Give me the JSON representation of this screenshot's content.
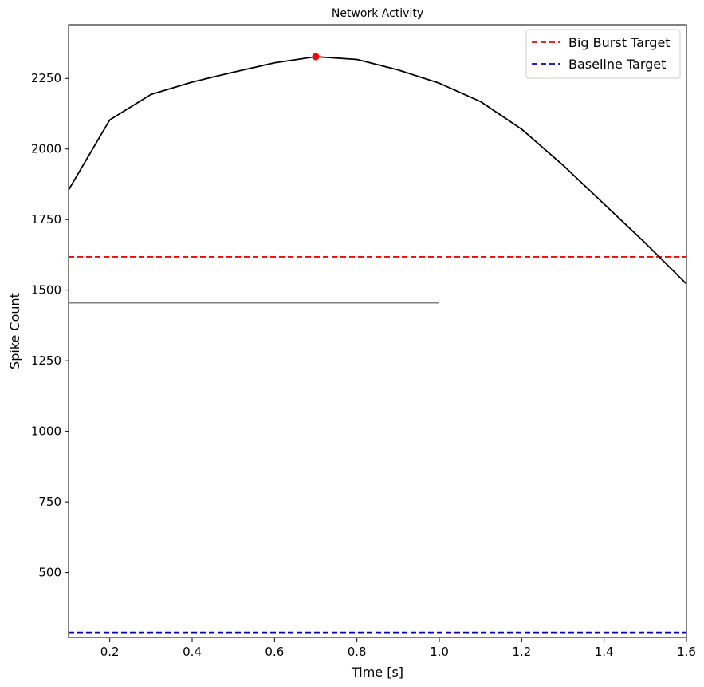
{
  "chart_data": {
    "type": "line",
    "title": "Network Activity",
    "xlabel": "Time [s]",
    "ylabel": "Spike Count",
    "xlim": [
      0.1,
      1.6
    ],
    "ylim": [
      270,
      2440
    ],
    "xticks": [
      0.2,
      0.4,
      0.6,
      0.8,
      1.0,
      1.2,
      1.4,
      1.6
    ],
    "xtick_labels": [
      "0.2",
      "0.4",
      "0.6",
      "0.8",
      "1.0",
      "1.2",
      "1.4",
      "1.6"
    ],
    "yticks": [
      500,
      750,
      1000,
      1250,
      1500,
      1750,
      2000,
      2250
    ],
    "ytick_labels": [
      "500",
      "750",
      "1000",
      "1250",
      "1500",
      "1750",
      "2000",
      "2250"
    ],
    "series": [
      {
        "name": "activity",
        "color": "#000000",
        "x": [
          0.1,
          0.2,
          0.3,
          0.4,
          0.5,
          0.6,
          0.7,
          0.8,
          0.9,
          1.0,
          1.1,
          1.2,
          1.3,
          1.4,
          1.5,
          1.6
        ],
        "y": [
          1855,
          2103,
          2193,
          2237,
          2272,
          2305,
          2327,
          2317,
          2280,
          2233,
          2168,
          2070,
          1943,
          1805,
          1667,
          1522
        ]
      }
    ],
    "peak": {
      "x": 0.7,
      "y": 2327,
      "color": "#ff0000"
    },
    "segment": {
      "x": [
        0.1,
        1.0
      ],
      "y": 1455,
      "color": "#808080"
    },
    "hlines": [
      {
        "name": "Big Burst Target",
        "y": 1618,
        "color": "#ff0000",
        "style": "dashed"
      },
      {
        "name": "Baseline Target",
        "y": 288,
        "color": "#0000cc",
        "style": "dashed"
      }
    ],
    "legend": {
      "position": "top-right",
      "entries": [
        "Big Burst Target",
        "Baseline Target"
      ]
    }
  }
}
